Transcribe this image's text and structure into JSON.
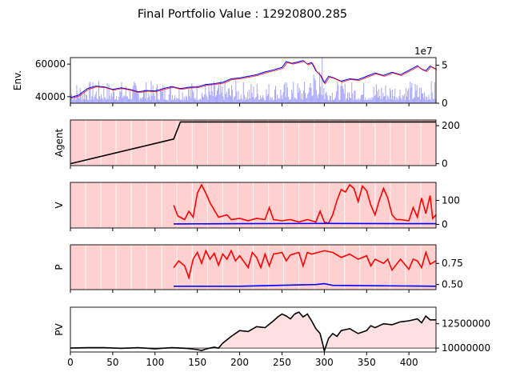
{
  "title": "Final Portfolio Value : 12920800.285",
  "chart_data": [
    {
      "type": "line",
      "panel": "Env.",
      "ylabel": "Env.",
      "xlim": [
        0,
        432
      ],
      "ylim": [
        36000,
        64000
      ],
      "yticks": [
        "40000",
        "60000"
      ],
      "ytick_values": [
        40000,
        60000
      ],
      "right_axis": {
        "ylim": [
          0,
          60000000
        ],
        "ticks": [
          "0",
          "5"
        ],
        "tick_values": [
          0,
          50000000
        ],
        "offset_label": "1e7"
      },
      "grid": false,
      "series": [
        {
          "color": "#0000ff",
          "points": [
            [
              0,
              39500
            ],
            [
              10,
              41000
            ],
            [
              20,
              45000
            ],
            [
              30,
              46500
            ],
            [
              40,
              46000
            ],
            [
              50,
              44500
            ],
            [
              60,
              45500
            ],
            [
              70,
              44500
            ],
            [
              80,
              43000
            ],
            [
              90,
              43800
            ],
            [
              100,
              43500
            ],
            [
              110,
              45000
            ],
            [
              120,
              46200
            ],
            [
              130,
              45000
            ],
            [
              140,
              45800
            ],
            [
              150,
              46000
            ],
            [
              160,
              47500
            ],
            [
              170,
              48000
            ],
            [
              180,
              48800
            ],
            [
              190,
              51000
            ],
            [
              200,
              51500
            ],
            [
              210,
              52500
            ],
            [
              220,
              53500
            ],
            [
              230,
              55200
            ],
            [
              240,
              56500
            ],
            [
              250,
              58000
            ],
            [
              255,
              61500
            ],
            [
              262,
              60500
            ],
            [
              270,
              61500
            ],
            [
              275,
              62200
            ],
            [
              280,
              60000
            ],
            [
              285,
              61000
            ],
            [
              290,
              56000
            ],
            [
              295,
              53500
            ],
            [
              300,
              48500
            ],
            [
              305,
              52500
            ],
            [
              310,
              51800
            ],
            [
              320,
              49500
            ],
            [
              330,
              51000
            ],
            [
              340,
              50500
            ],
            [
              350,
              52500
            ],
            [
              360,
              54500
            ],
            [
              370,
              53000
            ],
            [
              380,
              55000
            ],
            [
              390,
              53500
            ],
            [
              400,
              56200
            ],
            [
              410,
              59000
            ],
            [
              415,
              57000
            ],
            [
              420,
              56000
            ],
            [
              425,
              58800
            ],
            [
              432,
              57000
            ]
          ]
        }
      ],
      "volume": {
        "color": "#aaaaff",
        "right_axis_max": 60000000,
        "bar_count": 432,
        "peak": 60000000
      }
    },
    {
      "type": "line",
      "panel": "Agent",
      "ylabel": "Agent",
      "xlim": [
        0,
        432
      ],
      "ylim": [
        -10,
        230
      ],
      "right_axis": {
        "ticks": [
          "0",
          "200"
        ],
        "tick_values": [
          0,
          200
        ]
      },
      "background_color": "#ffd0d0",
      "series": [
        {
          "color": "#000000",
          "points": [
            [
              0,
              0
            ],
            [
              122,
              130
            ],
            [
              130,
              220
            ],
            [
              432,
              220
            ]
          ]
        }
      ]
    },
    {
      "type": "line",
      "panel": "V",
      "ylabel": "V",
      "xlim": [
        0,
        432
      ],
      "ylim": [
        -15,
        175
      ],
      "right_axis": {
        "ticks": [
          "0",
          "100"
        ],
        "tick_values": [
          0,
          100
        ]
      },
      "background_color": "#ffd0d0",
      "series": [
        {
          "color": "#ff0000",
          "points": [
            [
              122,
              80
            ],
            [
              127,
              35
            ],
            [
              135,
              20
            ],
            [
              140,
              55
            ],
            [
              145,
              30
            ],
            [
              150,
              130
            ],
            [
              155,
              165
            ],
            [
              160,
              130
            ],
            [
              165,
              90
            ],
            [
              170,
              60
            ],
            [
              175,
              30
            ],
            [
              185,
              40
            ],
            [
              190,
              20
            ],
            [
              200,
              25
            ],
            [
              210,
              15
            ],
            [
              220,
              25
            ],
            [
              230,
              20
            ],
            [
              235,
              70
            ],
            [
              240,
              20
            ],
            [
              250,
              15
            ],
            [
              260,
              20
            ],
            [
              270,
              10
            ],
            [
              280,
              20
            ],
            [
              290,
              10
            ],
            [
              295,
              55
            ],
            [
              300,
              10
            ],
            [
              305,
              5
            ],
            [
              310,
              40
            ],
            [
              315,
              100
            ],
            [
              320,
              145
            ],
            [
              325,
              135
            ],
            [
              330,
              165
            ],
            [
              335,
              150
            ],
            [
              340,
              95
            ],
            [
              345,
              160
            ],
            [
              350,
              140
            ],
            [
              355,
              80
            ],
            [
              360,
              40
            ],
            [
              365,
              100
            ],
            [
              370,
              150
            ],
            [
              375,
              110
            ],
            [
              380,
              40
            ],
            [
              385,
              20
            ],
            [
              390,
              20
            ],
            [
              400,
              15
            ],
            [
              405,
              70
            ],
            [
              410,
              30
            ],
            [
              415,
              110
            ],
            [
              420,
              45
            ],
            [
              425,
              120
            ],
            [
              428,
              25
            ],
            [
              432,
              40
            ]
          ]
        },
        {
          "color": "#0000ff",
          "points": [
            [
              122,
              2
            ],
            [
              200,
              3
            ],
            [
              300,
              4
            ],
            [
              432,
              3
            ]
          ]
        }
      ]
    },
    {
      "type": "line",
      "panel": "P",
      "ylabel": "P",
      "xlim": [
        0,
        432
      ],
      "ylim": [
        0.44,
        0.97
      ],
      "right_axis": {
        "ticks": [
          "0.50",
          "0.75"
        ],
        "tick_values": [
          0.5,
          0.75
        ]
      },
      "background_color": "#ffd0d0",
      "series": [
        {
          "color": "#ff0000",
          "points": [
            [
              122,
              0.7
            ],
            [
              128,
              0.78
            ],
            [
              135,
              0.72
            ],
            [
              140,
              0.58
            ],
            [
              145,
              0.8
            ],
            [
              150,
              0.88
            ],
            [
              155,
              0.75
            ],
            [
              160,
              0.9
            ],
            [
              165,
              0.8
            ],
            [
              170,
              0.87
            ],
            [
              175,
              0.73
            ],
            [
              180,
              0.86
            ],
            [
              185,
              0.8
            ],
            [
              190,
              0.9
            ],
            [
              195,
              0.78
            ],
            [
              200,
              0.84
            ],
            [
              210,
              0.7
            ],
            [
              215,
              0.88
            ],
            [
              220,
              0.82
            ],
            [
              225,
              0.7
            ],
            [
              230,
              0.86
            ],
            [
              235,
              0.72
            ],
            [
              240,
              0.86
            ],
            [
              250,
              0.88
            ],
            [
              255,
              0.78
            ],
            [
              260,
              0.85
            ],
            [
              270,
              0.88
            ],
            [
              275,
              0.72
            ],
            [
              280,
              0.88
            ],
            [
              285,
              0.86
            ],
            [
              300,
              0.9
            ],
            [
              310,
              0.88
            ],
            [
              320,
              0.82
            ],
            [
              330,
              0.86
            ],
            [
              340,
              0.8
            ],
            [
              350,
              0.84
            ],
            [
              355,
              0.72
            ],
            [
              360,
              0.8
            ],
            [
              370,
              0.75
            ],
            [
              375,
              0.8
            ],
            [
              380,
              0.67
            ],
            [
              390,
              0.8
            ],
            [
              400,
              0.68
            ],
            [
              405,
              0.8
            ],
            [
              410,
              0.78
            ],
            [
              415,
              0.7
            ],
            [
              420,
              0.88
            ],
            [
              425,
              0.74
            ],
            [
              432,
              0.78
            ]
          ]
        },
        {
          "color": "#0000ff",
          "points": [
            [
              122,
              0.48
            ],
            [
              200,
              0.48
            ],
            [
              290,
              0.5
            ],
            [
              300,
              0.51
            ],
            [
              310,
              0.49
            ],
            [
              432,
              0.48
            ]
          ]
        }
      ]
    },
    {
      "type": "area",
      "panel": "PV",
      "ylabel": "PV",
      "xlim": [
        0,
        432
      ],
      "ylim": [
        9600000,
        14200000
      ],
      "right_axis": {
        "ticks": [
          "10000000",
          "12500000"
        ],
        "tick_values": [
          10000000,
          12500000
        ]
      },
      "xticks": [
        "0",
        "50",
        "100",
        "150",
        "200",
        "250",
        "300",
        "350",
        "400"
      ],
      "xtick_values": [
        0,
        50,
        100,
        150,
        200,
        250,
        300,
        350,
        400
      ],
      "baseline": 10000000,
      "fill_color": "#ffe0e0",
      "baseline_color": "#808080",
      "series": [
        {
          "color": "#000000",
          "points": [
            [
              0,
              10000000
            ],
            [
              20,
              10050000
            ],
            [
              40,
              10050000
            ],
            [
              60,
              9980000
            ],
            [
              80,
              10050000
            ],
            [
              100,
              9920000
            ],
            [
              120,
              10050000
            ],
            [
              130,
              10000000
            ],
            [
              140,
              9950000
            ],
            [
              150,
              9850000
            ],
            [
              155,
              9750000
            ],
            [
              160,
              9900000
            ],
            [
              170,
              10100000
            ],
            [
              175,
              10000000
            ],
            [
              180,
              10500000
            ],
            [
              190,
              11200000
            ],
            [
              200,
              11800000
            ],
            [
              210,
              11700000
            ],
            [
              220,
              12200000
            ],
            [
              230,
              12100000
            ],
            [
              240,
              12800000
            ],
            [
              245,
              13200000
            ],
            [
              250,
              13500000
            ],
            [
              255,
              13300000
            ],
            [
              260,
              13000000
            ],
            [
              265,
              13500000
            ],
            [
              270,
              13700000
            ],
            [
              275,
              13200000
            ],
            [
              280,
              13500000
            ],
            [
              285,
              12800000
            ],
            [
              290,
              12000000
            ],
            [
              295,
              11500000
            ],
            [
              298,
              10500000
            ],
            [
              300,
              9700000
            ],
            [
              305,
              11000000
            ],
            [
              310,
              11500000
            ],
            [
              315,
              11200000
            ],
            [
              320,
              11800000
            ],
            [
              330,
              12000000
            ],
            [
              340,
              11500000
            ],
            [
              350,
              11800000
            ],
            [
              355,
              12300000
            ],
            [
              360,
              12100000
            ],
            [
              370,
              12500000
            ],
            [
              380,
              12400000
            ],
            [
              390,
              12700000
            ],
            [
              400,
              12800000
            ],
            [
              410,
              13000000
            ],
            [
              415,
              12600000
            ],
            [
              420,
              13300000
            ],
            [
              425,
              12900000
            ],
            [
              432,
              12900000
            ]
          ]
        }
      ]
    }
  ]
}
